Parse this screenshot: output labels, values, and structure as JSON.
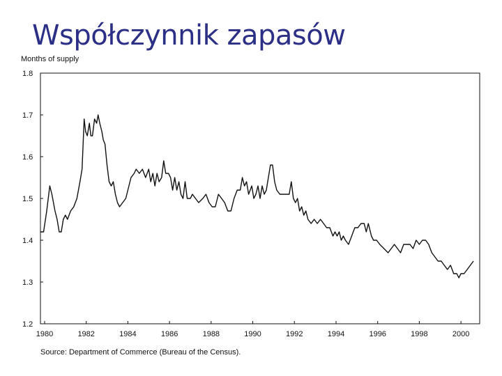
{
  "slide": {
    "title": "Współczynnik zapasów"
  },
  "chart_data": {
    "type": "line",
    "ylabel": "Months of supply",
    "source": "Source: Department of Commerce (Bureau of the Census).",
    "xlim": [
      1979.8,
      2000.9
    ],
    "ylim": [
      1.2,
      1.8
    ],
    "x_ticks": [
      1980,
      1982,
      1984,
      1986,
      1988,
      1990,
      1992,
      1994,
      1996,
      1998,
      2000
    ],
    "x_tick_labels": [
      "1980",
      "1982",
      "1984",
      "1986",
      "1988",
      "1990",
      "1992",
      "1994",
      "1996",
      "1998",
      "2000"
    ],
    "y_ticks": [
      1.2,
      1.3,
      1.4,
      1.5,
      1.6,
      1.7,
      1.8
    ],
    "y_tick_labels": [
      "1.2",
      "1.3",
      "1.4",
      "1.5",
      "1.6",
      "1.7",
      "1.8"
    ],
    "grid": false,
    "series": [
      {
        "points": [
          [
            1979.8,
            1.42
          ],
          [
            1979.95,
            1.42
          ],
          [
            1980.1,
            1.47
          ],
          [
            1980.25,
            1.53
          ],
          [
            1980.35,
            1.51
          ],
          [
            1980.5,
            1.47
          ],
          [
            1980.6,
            1.45
          ],
          [
            1980.7,
            1.42
          ],
          [
            1980.8,
            1.42
          ],
          [
            1980.9,
            1.45
          ],
          [
            1981.0,
            1.46
          ],
          [
            1981.1,
            1.45
          ],
          [
            1981.25,
            1.47
          ],
          [
            1981.4,
            1.48
          ],
          [
            1981.55,
            1.5
          ],
          [
            1981.7,
            1.54
          ],
          [
            1981.8,
            1.57
          ],
          [
            1981.9,
            1.69
          ],
          [
            1981.97,
            1.66
          ],
          [
            1982.05,
            1.65
          ],
          [
            1982.15,
            1.68
          ],
          [
            1982.22,
            1.65
          ],
          [
            1982.3,
            1.65
          ],
          [
            1982.4,
            1.69
          ],
          [
            1982.5,
            1.68
          ],
          [
            1982.57,
            1.7
          ],
          [
            1982.65,
            1.68
          ],
          [
            1982.75,
            1.66
          ],
          [
            1982.82,
            1.64
          ],
          [
            1982.9,
            1.63
          ],
          [
            1983.0,
            1.58
          ],
          [
            1983.1,
            1.54
          ],
          [
            1983.2,
            1.53
          ],
          [
            1983.3,
            1.54
          ],
          [
            1983.4,
            1.51
          ],
          [
            1983.5,
            1.49
          ],
          [
            1983.6,
            1.48
          ],
          [
            1983.75,
            1.49
          ],
          [
            1983.9,
            1.5
          ],
          [
            1984.0,
            1.52
          ],
          [
            1984.15,
            1.55
          ],
          [
            1984.3,
            1.56
          ],
          [
            1984.4,
            1.57
          ],
          [
            1984.55,
            1.56
          ],
          [
            1984.7,
            1.57
          ],
          [
            1984.85,
            1.55
          ],
          [
            1985.0,
            1.57
          ],
          [
            1985.1,
            1.54
          ],
          [
            1985.2,
            1.56
          ],
          [
            1985.3,
            1.53
          ],
          [
            1985.4,
            1.56
          ],
          [
            1985.5,
            1.54
          ],
          [
            1985.62,
            1.55
          ],
          [
            1985.72,
            1.59
          ],
          [
            1985.82,
            1.56
          ],
          [
            1985.95,
            1.56
          ],
          [
            1986.05,
            1.55
          ],
          [
            1986.15,
            1.52
          ],
          [
            1986.25,
            1.55
          ],
          [
            1986.35,
            1.52
          ],
          [
            1986.45,
            1.54
          ],
          [
            1986.55,
            1.51
          ],
          [
            1986.65,
            1.5
          ],
          [
            1986.75,
            1.54
          ],
          [
            1986.85,
            1.5
          ],
          [
            1987.0,
            1.5
          ],
          [
            1987.1,
            1.51
          ],
          [
            1987.25,
            1.5
          ],
          [
            1987.4,
            1.49
          ],
          [
            1987.6,
            1.5
          ],
          [
            1987.75,
            1.51
          ],
          [
            1987.9,
            1.49
          ],
          [
            1988.05,
            1.48
          ],
          [
            1988.2,
            1.48
          ],
          [
            1988.35,
            1.51
          ],
          [
            1988.5,
            1.5
          ],
          [
            1988.65,
            1.49
          ],
          [
            1988.8,
            1.47
          ],
          [
            1988.95,
            1.47
          ],
          [
            1989.1,
            1.5
          ],
          [
            1989.25,
            1.52
          ],
          [
            1989.4,
            1.52
          ],
          [
            1989.5,
            1.55
          ],
          [
            1989.6,
            1.53
          ],
          [
            1989.7,
            1.54
          ],
          [
            1989.8,
            1.51
          ],
          [
            1989.95,
            1.53
          ],
          [
            1990.05,
            1.5
          ],
          [
            1990.15,
            1.51
          ],
          [
            1990.25,
            1.53
          ],
          [
            1990.35,
            1.5
          ],
          [
            1990.45,
            1.53
          ],
          [
            1990.55,
            1.51
          ],
          [
            1990.65,
            1.52
          ],
          [
            1990.75,
            1.55
          ],
          [
            1990.85,
            1.58
          ],
          [
            1990.95,
            1.58
          ],
          [
            1991.05,
            1.54
          ],
          [
            1991.15,
            1.52
          ],
          [
            1991.3,
            1.51
          ],
          [
            1991.5,
            1.51
          ],
          [
            1991.65,
            1.51
          ],
          [
            1991.75,
            1.51
          ],
          [
            1991.85,
            1.54
          ],
          [
            1991.95,
            1.5
          ],
          [
            1992.05,
            1.49
          ],
          [
            1992.15,
            1.5
          ],
          [
            1992.25,
            1.47
          ],
          [
            1992.35,
            1.48
          ],
          [
            1992.45,
            1.46
          ],
          [
            1992.55,
            1.47
          ],
          [
            1992.65,
            1.45
          ],
          [
            1992.8,
            1.44
          ],
          [
            1992.95,
            1.45
          ],
          [
            1993.1,
            1.44
          ],
          [
            1993.25,
            1.45
          ],
          [
            1993.4,
            1.44
          ],
          [
            1993.55,
            1.43
          ],
          [
            1993.7,
            1.43
          ],
          [
            1993.85,
            1.41
          ],
          [
            1993.95,
            1.42
          ],
          [
            1994.05,
            1.41
          ],
          [
            1994.15,
            1.42
          ],
          [
            1994.25,
            1.4
          ],
          [
            1994.35,
            1.41
          ],
          [
            1994.45,
            1.4
          ],
          [
            1994.6,
            1.39
          ],
          [
            1994.75,
            1.41
          ],
          [
            1994.9,
            1.43
          ],
          [
            1995.05,
            1.43
          ],
          [
            1995.2,
            1.44
          ],
          [
            1995.35,
            1.44
          ],
          [
            1995.45,
            1.42
          ],
          [
            1995.55,
            1.44
          ],
          [
            1995.7,
            1.41
          ],
          [
            1995.8,
            1.4
          ],
          [
            1995.95,
            1.4
          ],
          [
            1996.1,
            1.39
          ],
          [
            1996.3,
            1.38
          ],
          [
            1996.5,
            1.37
          ],
          [
            1996.65,
            1.38
          ],
          [
            1996.8,
            1.39
          ],
          [
            1996.95,
            1.38
          ],
          [
            1997.1,
            1.37
          ],
          [
            1997.25,
            1.39
          ],
          [
            1997.4,
            1.39
          ],
          [
            1997.55,
            1.39
          ],
          [
            1997.7,
            1.38
          ],
          [
            1997.85,
            1.4
          ],
          [
            1998.0,
            1.39
          ],
          [
            1998.15,
            1.4
          ],
          [
            1998.3,
            1.4
          ],
          [
            1998.45,
            1.39
          ],
          [
            1998.6,
            1.37
          ],
          [
            1998.75,
            1.36
          ],
          [
            1998.9,
            1.35
          ],
          [
            1999.05,
            1.35
          ],
          [
            1999.2,
            1.34
          ],
          [
            1999.35,
            1.33
          ],
          [
            1999.5,
            1.34
          ],
          [
            1999.65,
            1.32
          ],
          [
            1999.8,
            1.32
          ],
          [
            1999.9,
            1.31
          ],
          [
            2000.0,
            1.32
          ],
          [
            2000.15,
            1.32
          ],
          [
            2000.3,
            1.33
          ],
          [
            2000.45,
            1.34
          ],
          [
            2000.6,
            1.35
          ]
        ]
      }
    ]
  }
}
